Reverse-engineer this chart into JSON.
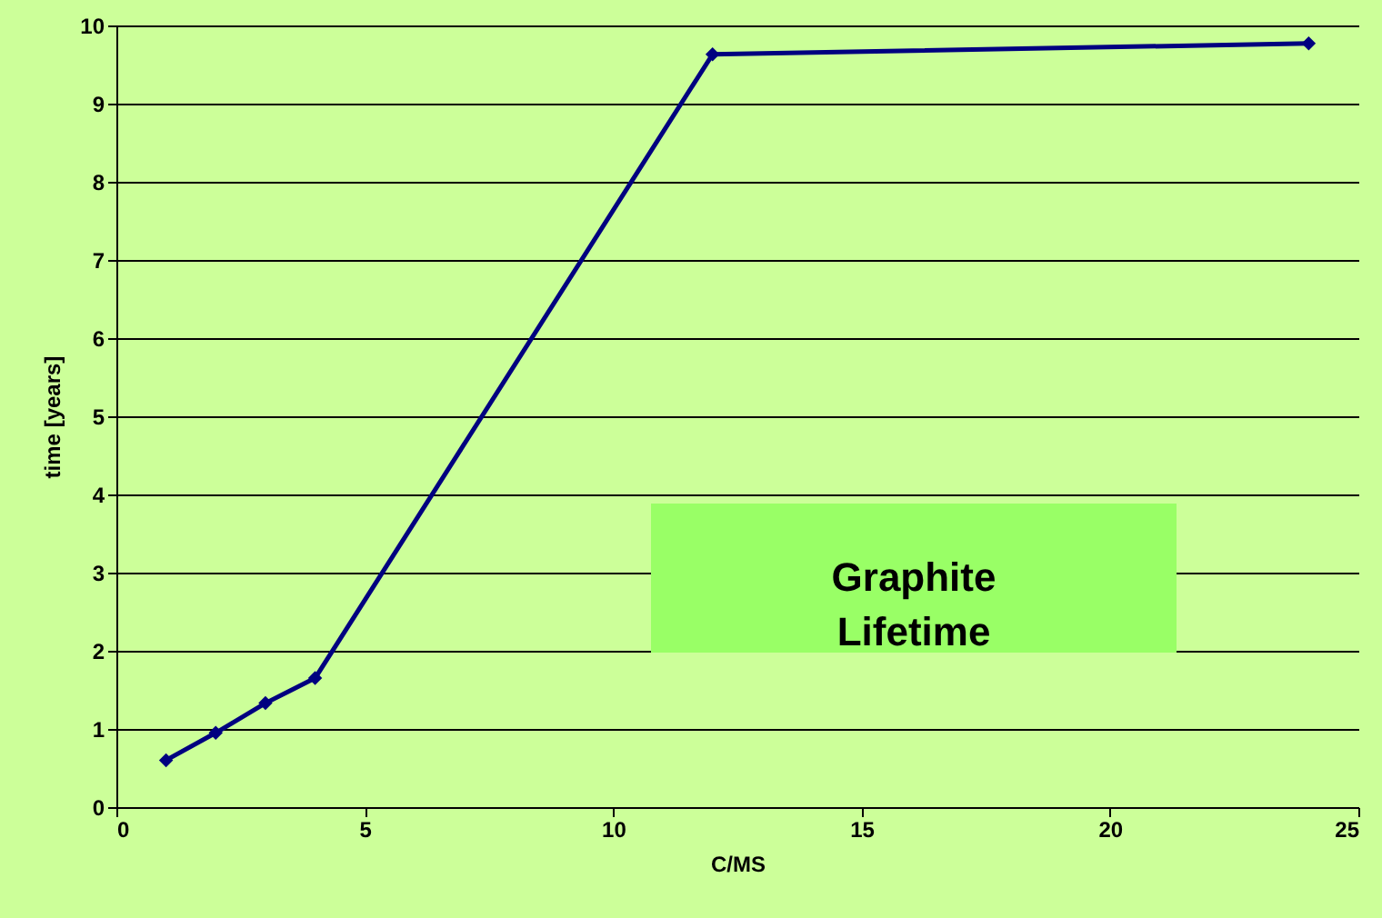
{
  "chart_data": {
    "type": "line",
    "xlabel": "C/MS",
    "ylabel": "time [years]",
    "x": [
      1,
      2,
      3,
      4,
      12,
      24
    ],
    "series": [
      {
        "color": "#000080",
        "values": [
          0.6,
          0.95,
          1.33,
          1.65,
          9.63,
          9.77
        ]
      }
    ],
    "xlim": [
      0,
      25
    ],
    "xticks": [
      0,
      5,
      10,
      15,
      20,
      25
    ],
    "ylim": [
      0,
      10
    ],
    "yticks": [
      0,
      1,
      2,
      3,
      4,
      5,
      6,
      7,
      8,
      9,
      10
    ],
    "grid": "y",
    "marker": "diamond",
    "line_style": "solid",
    "annotations": [
      "Graphite Lifetime"
    ]
  }
}
